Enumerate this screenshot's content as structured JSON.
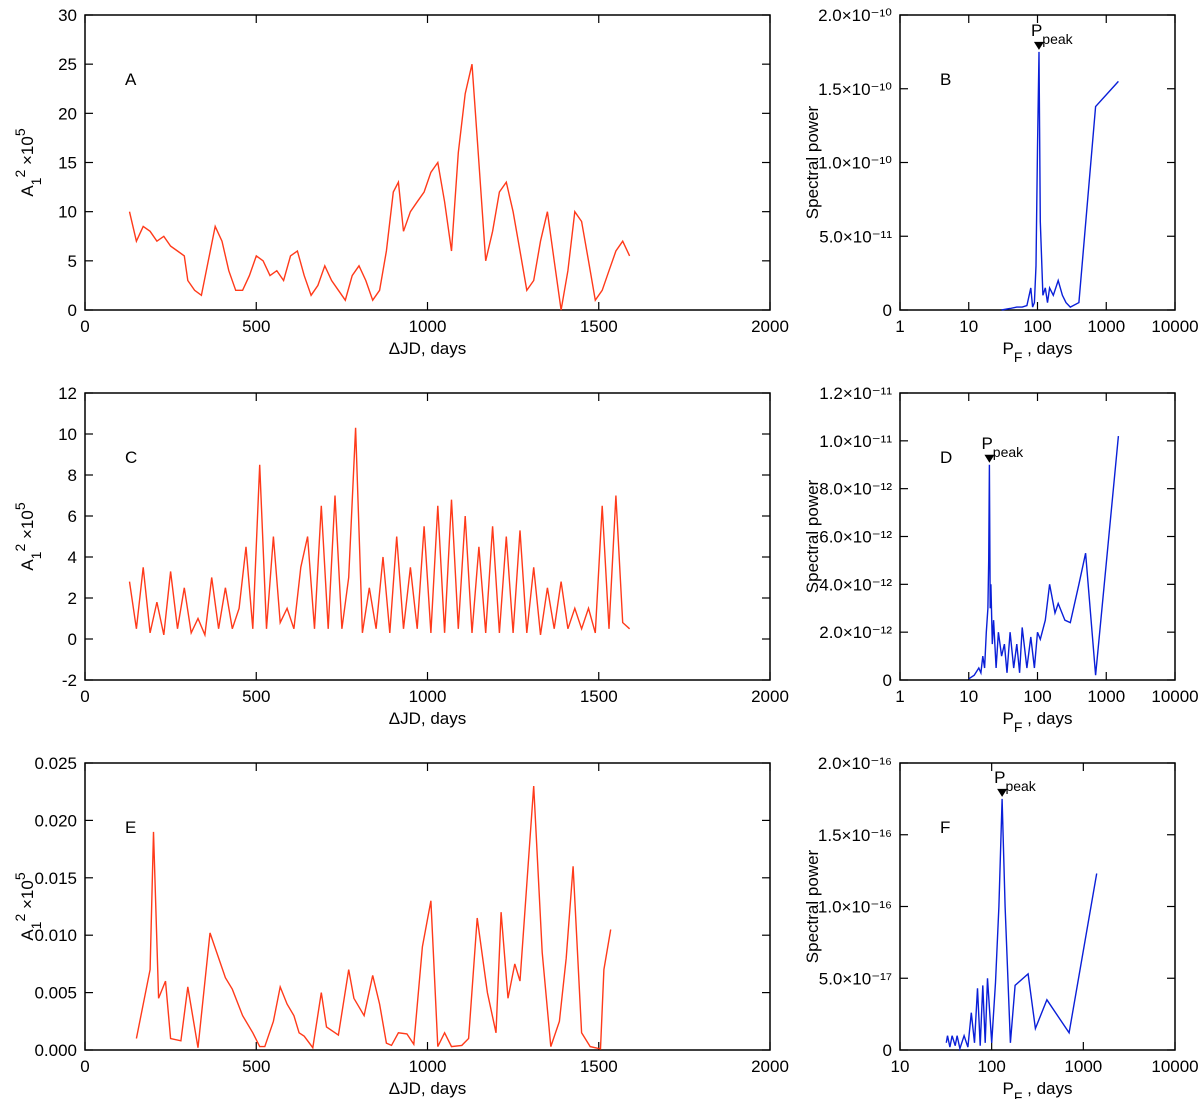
{
  "chart_data": [
    {
      "type": "line",
      "annotation": "A",
      "color": "#ff3a1a",
      "xlabel": "ΔJD, days",
      "ylabel": [
        {
          "text": "A"
        },
        {
          "text": "1",
          "shift": "sub"
        },
        {
          "text": "2",
          "shift": "super"
        },
        {
          "text": " ×10"
        },
        {
          "text": "5",
          "shift": "super"
        }
      ],
      "xlim": [
        0,
        2000
      ],
      "xticks": [
        0,
        500,
        1000,
        1500,
        2000
      ],
      "ylim": [
        0,
        30
      ],
      "yticks": [
        0,
        5,
        10,
        15,
        20,
        25,
        30
      ],
      "x": [
        130,
        150,
        170,
        190,
        210,
        230,
        250,
        270,
        290,
        300,
        320,
        340,
        360,
        380,
        400,
        420,
        440,
        460,
        480,
        500,
        520,
        540,
        560,
        580,
        600,
        620,
        640,
        660,
        680,
        700,
        720,
        740,
        760,
        780,
        800,
        820,
        840,
        860,
        880,
        900,
        915,
        930,
        950,
        970,
        990,
        1010,
        1030,
        1050,
        1070,
        1090,
        1110,
        1130,
        1150,
        1170,
        1190,
        1210,
        1230,
        1250,
        1270,
        1290,
        1310,
        1330,
        1350,
        1370,
        1390,
        1410,
        1430,
        1450,
        1470,
        1490,
        1510,
        1530,
        1550,
        1570,
        1590
      ],
      "values": [
        10,
        7,
        8.5,
        8,
        7,
        7.5,
        6.5,
        6,
        5.5,
        3,
        2,
        1.5,
        5,
        8.5,
        7,
        4,
        2,
        2,
        3.5,
        5.5,
        5,
        3.5,
        4,
        3,
        5.5,
        6,
        3.5,
        1.5,
        2.5,
        4.5,
        3,
        2,
        1,
        3.5,
        4.5,
        3,
        1,
        2,
        6,
        12,
        13,
        8,
        10,
        11,
        12,
        14,
        15,
        11,
        6,
        16,
        22,
        25,
        15,
        5,
        8,
        12,
        13,
        10,
        6,
        2,
        3,
        7,
        10,
        5,
        0,
        4,
        10,
        9,
        5,
        1,
        2,
        4,
        6,
        7,
        5.5
      ]
    },
    {
      "type": "line",
      "annotation": "B",
      "color": "#0a1fd8",
      "xscale": "log",
      "xlabel": [
        {
          "text": "P"
        },
        {
          "text": "F",
          "shift": "sub"
        },
        {
          "text": " , days"
        }
      ],
      "ylabel": "Spectral power",
      "xlim": [
        1,
        10000
      ],
      "xticks": [
        1,
        10,
        100,
        1000,
        10000
      ],
      "ylim": [
        0,
        2e-10
      ],
      "yticks": [
        0,
        {
          "value": 5e-11,
          "label": "5.0×10⁻¹¹"
        },
        {
          "value": 1e-10,
          "label": "1.0×10⁻¹⁰"
        },
        {
          "value": 1.5e-10,
          "label": "1.5×10⁻¹⁰"
        },
        {
          "value": 2e-10,
          "label": "2.0×10⁻¹⁰"
        }
      ],
      "peak": {
        "x": 105,
        "y": 1.75e-10,
        "label": [
          {
            "text": "P"
          },
          {
            "text": "peak",
            "shift": "sub"
          }
        ]
      },
      "x": [
        30,
        40,
        50,
        60,
        70,
        80,
        85,
        90,
        95,
        100,
        105,
        110,
        120,
        130,
        140,
        150,
        170,
        200,
        230,
        260,
        300,
        400,
        700,
        1500
      ],
      "values": [
        0,
        1e-12,
        2e-12,
        2e-12,
        3e-12,
        1.5e-11,
        2e-12,
        5e-12,
        3e-11,
        1.1e-10,
        1.75e-10,
        6e-11,
        1e-11,
        1.5e-11,
        5e-12,
        1.5e-11,
        1e-11,
        2e-11,
        1e-11,
        5e-12,
        2e-12,
        5e-12,
        1.38e-10,
        1.55e-10
      ]
    },
    {
      "type": "line",
      "annotation": "C",
      "color": "#ff3a1a",
      "xlabel": "ΔJD, days",
      "ylabel": [
        {
          "text": "A"
        },
        {
          "text": "1",
          "shift": "sub"
        },
        {
          "text": "2",
          "shift": "super"
        },
        {
          "text": " ×10"
        },
        {
          "text": "5",
          "shift": "super"
        }
      ],
      "xlim": [
        0,
        2000
      ],
      "xticks": [
        0,
        500,
        1000,
        1500,
        2000
      ],
      "ylim": [
        -2,
        12
      ],
      "yticks": [
        -2,
        0,
        2,
        4,
        6,
        8,
        10,
        12
      ],
      "x": [
        130,
        150,
        170,
        190,
        210,
        230,
        250,
        270,
        290,
        310,
        330,
        350,
        370,
        390,
        410,
        430,
        450,
        470,
        490,
        510,
        530,
        550,
        570,
        590,
        610,
        630,
        650,
        670,
        690,
        710,
        730,
        750,
        770,
        790,
        810,
        830,
        850,
        870,
        890,
        910,
        930,
        950,
        970,
        990,
        1010,
        1030,
        1050,
        1070,
        1090,
        1110,
        1130,
        1150,
        1170,
        1190,
        1210,
        1230,
        1250,
        1270,
        1290,
        1310,
        1330,
        1350,
        1370,
        1390,
        1410,
        1430,
        1450,
        1470,
        1490,
        1510,
        1530,
        1550,
        1570,
        1590
      ],
      "values": [
        2.8,
        0.5,
        3.5,
        0.3,
        1.8,
        0.2,
        3.3,
        0.5,
        2.5,
        0.3,
        1,
        0.2,
        3,
        0.5,
        2.5,
        0.5,
        1.5,
        4.5,
        0.5,
        8.5,
        0.5,
        5,
        0.8,
        1.5,
        0.5,
        3.5,
        5,
        0.5,
        6.5,
        0.5,
        7,
        0.5,
        3,
        10.3,
        0.3,
        2.5,
        0.5,
        4,
        0.3,
        5,
        0.5,
        3.5,
        0.5,
        5.5,
        0.3,
        6.5,
        0.3,
        6.8,
        0.5,
        6,
        0.3,
        4.5,
        0.3,
        5.5,
        0.3,
        5,
        0.3,
        5.3,
        0.3,
        3.5,
        0.2,
        2.5,
        0.5,
        2.8,
        0.5,
        1.5,
        0.5,
        1.5,
        0.3,
        6.5,
        0.5,
        7,
        0.8,
        0.5
      ]
    },
    {
      "type": "line",
      "annotation": "D",
      "color": "#0a1fd8",
      "xscale": "log",
      "xlabel": [
        {
          "text": "P"
        },
        {
          "text": "F",
          "shift": "sub"
        },
        {
          "text": " , days"
        }
      ],
      "ylabel": "Spectral power",
      "xlim": [
        1,
        10000
      ],
      "xticks": [
        1,
        10,
        100,
        1000,
        10000
      ],
      "ylim": [
        0,
        1.2e-11
      ],
      "yticks": [
        0,
        {
          "value": 2e-12,
          "label": "2.0×10⁻¹²"
        },
        {
          "value": 4e-12,
          "label": "4.0×10⁻¹²"
        },
        {
          "value": 6e-12,
          "label": "6.0×10⁻¹²"
        },
        {
          "value": 8e-12,
          "label": "8.0×10⁻¹²"
        },
        {
          "value": 1e-11,
          "label": "1.0×10⁻¹¹"
        },
        {
          "value": 1.2e-11,
          "label": "1.2×10⁻¹¹"
        }
      ],
      "peak": {
        "x": 20,
        "y": 9e-12,
        "label": [
          {
            "text": "P"
          },
          {
            "text": "peak",
            "shift": "sub"
          }
        ]
      },
      "x": [
        10,
        12,
        14,
        15,
        16,
        17,
        18,
        19,
        19.5,
        20,
        20.5,
        21,
        22,
        23,
        25,
        27,
        30,
        33,
        36,
        40,
        45,
        50,
        55,
        60,
        70,
        80,
        90,
        100,
        110,
        130,
        150,
        180,
        200,
        250,
        300,
        400,
        500,
        700,
        1500
      ],
      "values": [
        5e-14,
        2e-13,
        5e-13,
        3e-13,
        1e-12,
        5e-13,
        2e-12,
        3e-12,
        5e-12,
        9e-12,
        3e-12,
        4e-12,
        1.5e-12,
        2.5e-12,
        5e-13,
        2e-12,
        1e-12,
        1.5e-12,
        3e-13,
        2e-12,
        5e-13,
        1.5e-12,
        3e-13,
        2.2e-12,
        5e-13,
        1.8e-12,
        5e-13,
        2e-12,
        1.7e-12,
        2.5e-12,
        4e-12,
        2.8e-12,
        3.2e-12,
        2.5e-12,
        2.4e-12,
        4e-12,
        5.3e-12,
        2e-13,
        1.02e-11
      ]
    },
    {
      "type": "line",
      "annotation": "E",
      "color": "#ff3a1a",
      "xlabel": "ΔJD, days",
      "ylabel": [
        {
          "text": "A"
        },
        {
          "text": "1",
          "shift": "sub"
        },
        {
          "text": "2",
          "shift": "super"
        },
        {
          "text": " ×10"
        },
        {
          "text": "5",
          "shift": "super"
        }
      ],
      "xlim": [
        0,
        2000
      ],
      "xticks": [
        0,
        500,
        1000,
        1500,
        2000
      ],
      "ylim": [
        0,
        0.025
      ],
      "yticks": [
        {
          "value": 0,
          "label": "0.000"
        },
        {
          "value": 0.005,
          "label": "0.005"
        },
        {
          "value": 0.01,
          "label": "0.010"
        },
        {
          "value": 0.015,
          "label": "0.015"
        },
        {
          "value": 0.02,
          "label": "0.020"
        },
        {
          "value": 0.025,
          "label": "0.025"
        }
      ],
      "x": [
        150,
        190,
        200,
        215,
        235,
        250,
        280,
        300,
        330,
        365,
        410,
        430,
        460,
        490,
        510,
        525,
        550,
        570,
        590,
        610,
        625,
        640,
        665,
        690,
        705,
        740,
        770,
        785,
        815,
        840,
        860,
        880,
        895,
        915,
        940,
        960,
        985,
        1010,
        1030,
        1050,
        1070,
        1100,
        1120,
        1145,
        1175,
        1200,
        1215,
        1235,
        1255,
        1270,
        1310,
        1335,
        1360,
        1385,
        1405,
        1425,
        1450,
        1475,
        1505,
        1515,
        1535
      ],
      "values": [
        0.001,
        0.007,
        0.019,
        0.0045,
        0.006,
        0.001,
        0.0008,
        0.0055,
        0.0002,
        0.0102,
        0.0063,
        0.0053,
        0.003,
        0.0015,
        0.0003,
        0.0003,
        0.0025,
        0.0055,
        0.004,
        0.003,
        0.0015,
        0.0012,
        0.0002,
        0.005,
        0.002,
        0.0013,
        0.007,
        0.0045,
        0.003,
        0.0065,
        0.004,
        0.0006,
        0.0004,
        0.0015,
        0.0014,
        0.0005,
        0.009,
        0.013,
        0.0003,
        0.0015,
        0.0003,
        0.0004,
        0.001,
        0.0115,
        0.005,
        0.0015,
        0.012,
        0.0045,
        0.0075,
        0.006,
        0.023,
        0.0085,
        0.0003,
        0.0025,
        0.008,
        0.016,
        0.0015,
        0.0003,
        0.0001,
        0.007,
        0.0105
      ]
    },
    {
      "type": "line",
      "annotation": "F",
      "color": "#0a1fd8",
      "xscale": "log",
      "xlabel": [
        {
          "text": "P"
        },
        {
          "text": "F",
          "shift": "sub"
        },
        {
          "text": " , days"
        }
      ],
      "ylabel": "Spectral power",
      "xlim": [
        10,
        10000
      ],
      "xticks": [
        10,
        100,
        1000,
        10000
      ],
      "ylim": [
        0,
        2e-16
      ],
      "yticks": [
        0,
        {
          "value": 5e-17,
          "label": "5.0×10⁻¹⁷"
        },
        {
          "value": 1e-16,
          "label": "1.0×10⁻¹⁶"
        },
        {
          "value": 1.5e-16,
          "label": "1.5×10⁻¹⁶"
        },
        {
          "value": 2e-16,
          "label": "2.0×10⁻¹⁶"
        }
      ],
      "peak": {
        "x": 130,
        "y": 1.75e-16,
        "label": [
          {
            "text": "P"
          },
          {
            "text": "peak",
            "shift": "sub"
          }
        ]
      },
      "x": [
        32,
        33,
        35,
        37,
        40,
        42,
        45,
        50,
        55,
        60,
        65,
        70,
        75,
        80,
        85,
        90,
        100,
        110,
        120,
        130,
        140,
        160,
        180,
        250,
        300,
        400,
        700,
        1400
      ],
      "values": [
        5e-18,
        1e-17,
        2e-18,
        1e-17,
        3e-18,
        1e-17,
        1e-18,
        1e-17,
        2e-18,
        2.6e-17,
        5e-18,
        4.3e-17,
        3e-18,
        4.5e-17,
        5e-18,
        5e-17,
        5e-18,
        4.7e-17,
        1e-16,
        1.75e-16,
        1e-16,
        5e-18,
        4.5e-17,
        5.3e-17,
        1.5e-17,
        3.5e-17,
        1.2e-17,
        1.23e-16
      ]
    }
  ]
}
